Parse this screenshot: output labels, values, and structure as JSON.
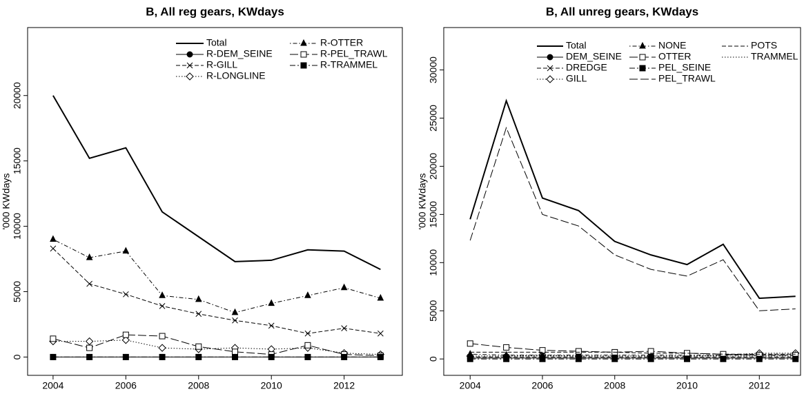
{
  "chart_data": [
    {
      "type": "line",
      "title": "B, All reg gears, KWdays",
      "ylabel": "'000 KWdays",
      "x": [
        2004,
        2005,
        2006,
        2007,
        2008,
        2009,
        2010,
        2011,
        2012,
        2013
      ],
      "xlim": [
        2003.3,
        2013.6
      ],
      "xticks": [
        2004,
        2006,
        2008,
        2010,
        2012
      ],
      "ylim": [
        -1400,
        25200
      ],
      "yticks": [
        0,
        5000,
        10000,
        15000,
        20000
      ],
      "series": [
        {
          "name": "Total",
          "color": "#000000",
          "dash": "solid",
          "marker": "none",
          "width": 2,
          "values": [
            20000,
            15200,
            16000,
            11100,
            9200,
            7300,
            7400,
            8200,
            8100,
            6700
          ]
        },
        {
          "name": "R-DEM_SEINE",
          "color": "#000000",
          "dash": "solid",
          "marker": "circle-filled",
          "width": 1,
          "values": [
            0,
            0,
            0,
            0,
            0,
            0,
            0,
            0,
            0,
            0
          ]
        },
        {
          "name": "R-GILL",
          "color": "#000000",
          "dash": "dashed",
          "marker": "cross",
          "width": 1,
          "values": [
            8300,
            5600,
            4800,
            3900,
            3300,
            2800,
            2400,
            1800,
            2200,
            1800
          ]
        },
        {
          "name": "R-LONGLINE",
          "color": "#000000",
          "dash": "dotted",
          "marker": "diamond-open",
          "width": 1,
          "values": [
            1200,
            1200,
            1300,
            700,
            600,
            700,
            600,
            700,
            300,
            200
          ]
        },
        {
          "name": "R-OTTER",
          "color": "#000000",
          "dash": "dotdash",
          "marker": "triangle-filled",
          "width": 1,
          "values": [
            9000,
            7600,
            8100,
            4700,
            4400,
            3400,
            4100,
            4700,
            5300,
            4500
          ]
        },
        {
          "name": "R-PEL_TRAWL",
          "color": "#000000",
          "dash": "longdash",
          "marker": "square-open",
          "width": 1,
          "values": [
            1400,
            700,
            1700,
            1600,
            800,
            400,
            200,
            900,
            200,
            100
          ]
        },
        {
          "name": "R-TRAMMEL",
          "color": "#000000",
          "dash": "twodash",
          "marker": "square-filled",
          "width": 1,
          "values": [
            0,
            0,
            0,
            0,
            0,
            0,
            0,
            0,
            0,
            0
          ]
        }
      ]
    },
    {
      "type": "line",
      "title": "B, All unreg gears, KWdays",
      "ylabel": "'000 KWdays",
      "x": [
        2004,
        2005,
        2006,
        2007,
        2008,
        2009,
        2010,
        2011,
        2012,
        2013
      ],
      "xlim": [
        2003.27,
        2013.14
      ],
      "xticks": [
        2004,
        2006,
        2008,
        2010,
        2012
      ],
      "ylim": [
        -1700,
        34400
      ],
      "yticks": [
        0,
        5000,
        10000,
        15000,
        20000,
        25000,
        30000
      ],
      "series": [
        {
          "name": "Total",
          "color": "#000000",
          "dash": "solid",
          "marker": "none",
          "width": 2,
          "values": [
            14500,
            26800,
            16700,
            15400,
            12200,
            10800,
            9800,
            11900,
            6300,
            6500
          ]
        },
        {
          "name": "DEM_SEINE",
          "color": "#000000",
          "dash": "solid",
          "marker": "circle-filled",
          "width": 1,
          "values": [
            100,
            100,
            100,
            100,
            100,
            100,
            100,
            100,
            100,
            100
          ]
        },
        {
          "name": "DREDGE",
          "color": "#000000",
          "dash": "dashed",
          "marker": "cross",
          "width": 1,
          "values": [
            200,
            200,
            200,
            200,
            200,
            200,
            200,
            200,
            200,
            200
          ]
        },
        {
          "name": "GILL",
          "color": "#000000",
          "dash": "dotted",
          "marker": "diamond-open",
          "width": 1,
          "values": [
            300,
            300,
            400,
            300,
            300,
            300,
            300,
            400,
            600,
            600
          ]
        },
        {
          "name": "NONE",
          "color": "#000000",
          "dash": "dotdash",
          "marker": "triangle-filled",
          "width": 1,
          "values": [
            500,
            400,
            400,
            400,
            400,
            400,
            400,
            400,
            400,
            400
          ]
        },
        {
          "name": "OTTER",
          "color": "#000000",
          "dash": "longdash",
          "marker": "square-open",
          "width": 1,
          "values": [
            1600,
            1200,
            900,
            800,
            700,
            800,
            600,
            500,
            400,
            400
          ]
        },
        {
          "name": "PEL_SEINE",
          "color": "#000000",
          "dash": "twodash",
          "marker": "square-filled",
          "width": 1,
          "values": [
            0,
            0,
            0,
            0,
            0,
            0,
            0,
            0,
            0,
            0
          ]
        },
        {
          "name": "PEL_TRAWL",
          "color": "#000000",
          "dash": "longdash",
          "marker": "none",
          "width": 1,
          "values": [
            12300,
            24000,
            15000,
            13800,
            10800,
            9300,
            8600,
            10300,
            5000,
            5200
          ]
        },
        {
          "name": "POTS",
          "color": "#000000",
          "dash": "dashed",
          "marker": "none",
          "width": 1,
          "values": [
            700,
            700,
            700,
            700,
            700,
            600,
            600,
            500,
            500,
            500
          ]
        },
        {
          "name": "TRAMMEL",
          "color": "#000000",
          "dash": "dotted",
          "marker": "none",
          "width": 1,
          "values": [
            300,
            300,
            300,
            300,
            300,
            300,
            300,
            300,
            300,
            300
          ]
        }
      ]
    }
  ]
}
